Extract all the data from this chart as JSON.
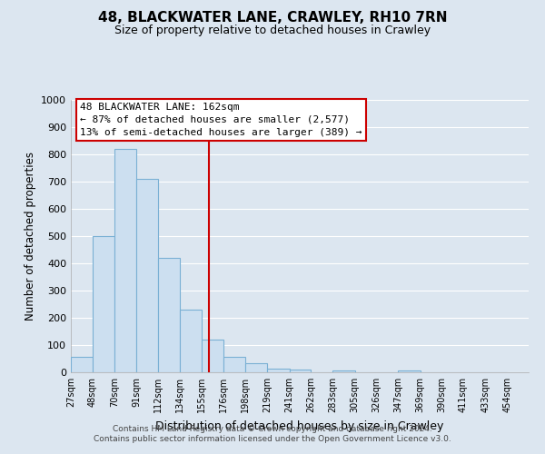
{
  "title": "48, BLACKWATER LANE, CRAWLEY, RH10 7RN",
  "subtitle": "Size of property relative to detached houses in Crawley",
  "xlabel": "Distribution of detached houses by size in Crawley",
  "ylabel": "Number of detached properties",
  "footer_line1": "Contains HM Land Registry data © Crown copyright and database right 2024.",
  "footer_line2": "Contains public sector information licensed under the Open Government Licence v3.0.",
  "bin_labels": [
    "27sqm",
    "48sqm",
    "70sqm",
    "91sqm",
    "112sqm",
    "134sqm",
    "155sqm",
    "176sqm",
    "198sqm",
    "219sqm",
    "241sqm",
    "262sqm",
    "283sqm",
    "305sqm",
    "326sqm",
    "347sqm",
    "369sqm",
    "390sqm",
    "411sqm",
    "433sqm",
    "454sqm"
  ],
  "bar_values": [
    57,
    500,
    820,
    710,
    420,
    230,
    120,
    57,
    35,
    13,
    10,
    0,
    7,
    0,
    0,
    7,
    0,
    0,
    0,
    0
  ],
  "bin_edges": [
    27,
    48,
    70,
    91,
    112,
    134,
    155,
    176,
    198,
    219,
    241,
    262,
    283,
    305,
    326,
    347,
    369,
    390,
    411,
    433,
    454
  ],
  "bar_color": "#ccdff0",
  "bar_edge_color": "#7ab0d4",
  "vline_x": 162,
  "vline_color": "#cc0000",
  "annotation_title": "48 BLACKWATER LANE: 162sqm",
  "annotation_line2": "← 87% of detached houses are smaller (2,577)",
  "annotation_line3": "13% of semi-detached houses are larger (389) →",
  "annotation_box_color": "#ffffff",
  "annotation_box_edge": "#cc0000",
  "ylim": [
    0,
    1000
  ],
  "yticks": [
    0,
    100,
    200,
    300,
    400,
    500,
    600,
    700,
    800,
    900,
    1000
  ],
  "bg_color": "#dce6f0",
  "plot_bg_color": "#dce6f0",
  "grid_color": "#ffffff"
}
